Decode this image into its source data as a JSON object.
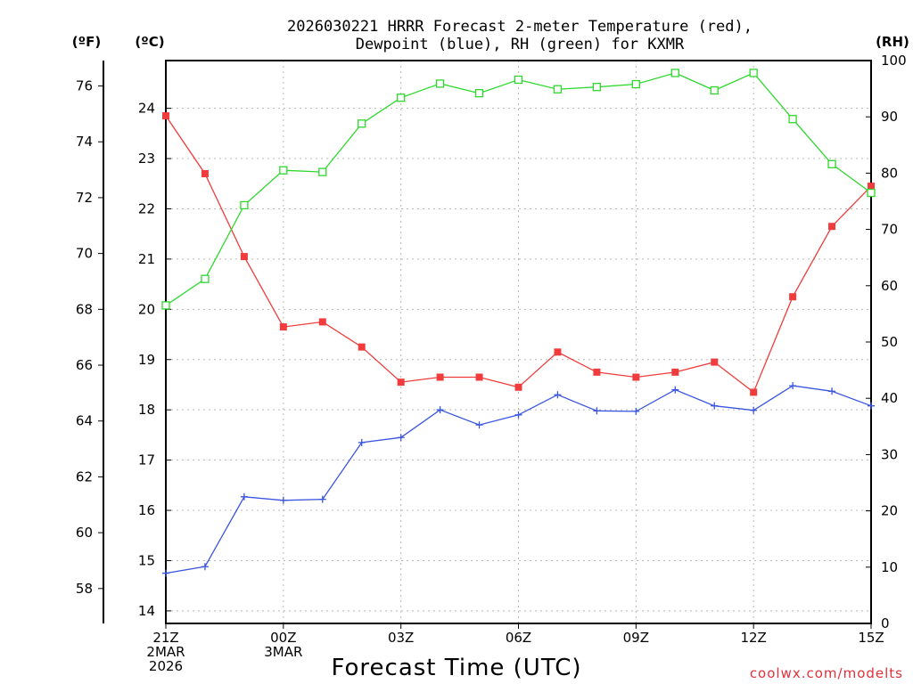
{
  "chart_data": {
    "type": "line",
    "title": [
      "2026030221 HRRR Forecast 2-meter Temperature (red),",
      "Dewpoint (blue), RH (green) for KXMR"
    ],
    "xlabel": "Forecast Time (UTC)",
    "credit": "coolwx.com/modelts",
    "units": {
      "f": "(ºF)",
      "c": "(ºC)",
      "rh": "(RH)"
    },
    "x_hours": [
      0,
      1,
      2,
      3,
      4,
      5,
      6,
      7,
      8,
      9,
      10,
      11,
      12,
      13,
      14,
      15,
      16,
      17,
      18
    ],
    "x_ticks": [
      {
        "hour": 0,
        "lines": [
          "21Z",
          "2MAR",
          "2026"
        ]
      },
      {
        "hour": 3,
        "lines": [
          "00Z",
          "3MAR"
        ]
      },
      {
        "hour": 6,
        "lines": [
          "03Z"
        ]
      },
      {
        "hour": 9,
        "lines": [
          "06Z"
        ]
      },
      {
        "hour": 12,
        "lines": [
          "09Z"
        ]
      },
      {
        "hour": 15,
        "lines": [
          "12Z"
        ]
      },
      {
        "hour": 18,
        "lines": [
          "15Z"
        ]
      }
    ],
    "ylim_c": [
      13.75,
      24.95
    ],
    "ylim_rh": [
      0,
      100
    ],
    "yticks_f": [
      "58",
      "60",
      "62",
      "64",
      "66",
      "68",
      "70",
      "72",
      "74",
      "76"
    ],
    "yticks_c": [
      "14",
      "15",
      "16",
      "17",
      "18",
      "19",
      "20",
      "21",
      "22",
      "23",
      "24"
    ],
    "yticks_rh": [
      "0",
      "10",
      "20",
      "30",
      "40",
      "50",
      "60",
      "70",
      "80",
      "90",
      "100"
    ],
    "series": [
      {
        "name": "Temperature",
        "color": "#f03c3c",
        "marker": "filled-square",
        "axis": "c",
        "values": [
          23.85,
          22.7,
          21.05,
          19.65,
          19.75,
          19.25,
          18.55,
          18.65,
          18.65,
          18.45,
          19.15,
          18.75,
          18.65,
          18.75,
          18.95,
          18.35,
          20.25,
          21.65,
          22.45
        ]
      },
      {
        "name": "Dewpoint",
        "color": "#3a55e0",
        "marker": "plus",
        "axis": "c",
        "values": [
          14.75,
          14.88,
          16.27,
          16.2,
          16.22,
          17.35,
          17.45,
          18.0,
          17.7,
          17.9,
          18.3,
          17.98,
          17.97,
          18.4,
          18.08,
          17.99,
          18.48,
          18.37,
          18.08
        ]
      },
      {
        "name": "RH",
        "color": "#2ed82e",
        "marker": "open-square",
        "axis": "rh",
        "values": [
          56.5,
          61.2,
          74.3,
          80.5,
          80.2,
          88.8,
          93.4,
          95.9,
          94.2,
          96.6,
          94.9,
          95.3,
          95.8,
          97.8,
          94.7,
          97.8,
          89.6,
          81.6,
          76.5
        ]
      }
    ]
  }
}
